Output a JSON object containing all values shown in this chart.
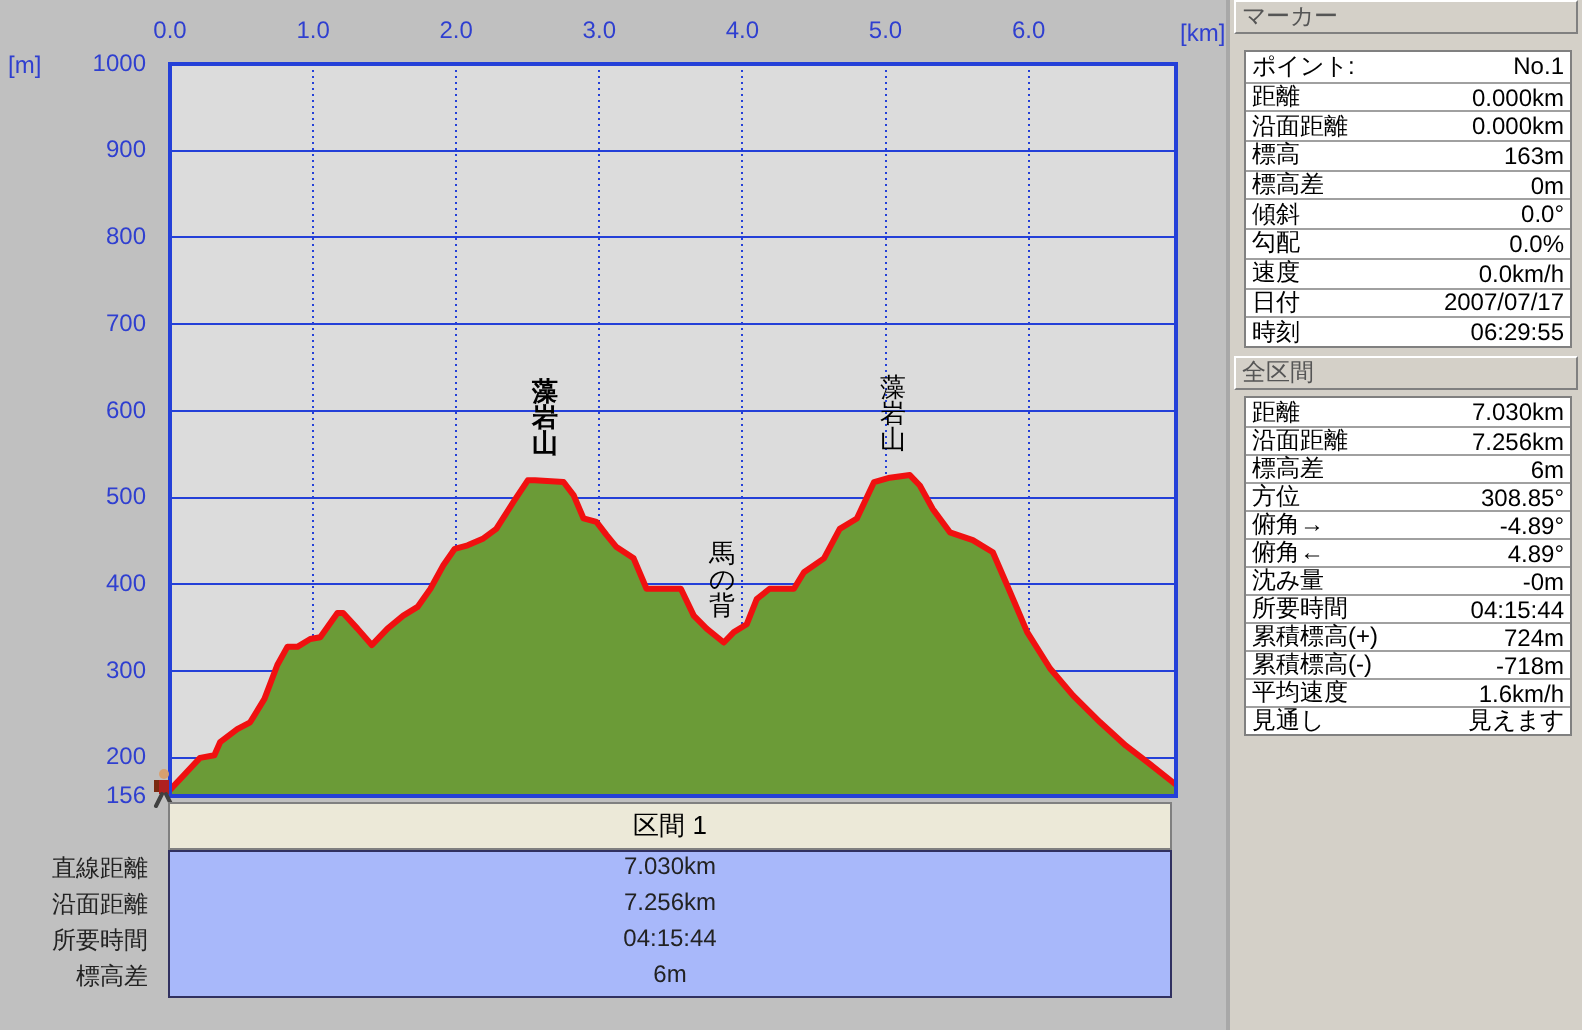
{
  "chart_data": [
    {
      "type": "area",
      "xlabel": "[km]",
      "ylabel": "[m]",
      "x": [
        0,
        0.21,
        0.31,
        0.35,
        0.47,
        0.56,
        0.66,
        0.75,
        0.82,
        0.89,
        0.98,
        1.05,
        1.17,
        1.21,
        1.31,
        1.41,
        1.52,
        1.63,
        1.73,
        1.82,
        1.91,
        1.99,
        2.08,
        2.19,
        2.28,
        2.4,
        2.5,
        2.55,
        2.75,
        2.82,
        2.89,
        2.98,
        3.05,
        3.12,
        3.24,
        3.33,
        3.43,
        3.57,
        3.66,
        3.75,
        3.87,
        3.94,
        4.03,
        4.1,
        4.19,
        4.36,
        4.43,
        4.57,
        4.68,
        4.8,
        4.92,
        5.03,
        5.17,
        5.24,
        5.33,
        5.45,
        5.61,
        5.75,
        5.85,
        5.99,
        6.15,
        6.31,
        6.5,
        6.68,
        6.87,
        7.03
      ],
      "series": [
        {
          "type": "area",
          "color": "#6b9b37",
          "values": [
            163,
            200,
            203,
            218,
            233,
            241,
            268,
            307,
            328,
            328,
            337,
            339,
            367,
            367,
            349,
            330,
            349,
            364,
            374,
            395,
            422,
            441,
            445,
            453,
            464,
            495,
            520,
            520,
            518,
            503,
            476,
            472,
            457,
            443,
            430,
            395,
            395,
            395,
            364,
            349,
            333,
            345,
            354,
            383,
            395,
            395,
            414,
            430,
            464,
            476,
            518,
            523,
            526,
            514,
            487,
            460,
            451,
            437,
            399,
            345,
            303,
            272,
            241,
            214,
            190,
            169
          ]
        },
        {
          "type": "line",
          "color": "#f01010",
          "values": [
            163,
            200,
            203,
            218,
            233,
            241,
            268,
            307,
            328,
            328,
            337,
            339,
            367,
            367,
            349,
            330,
            349,
            364,
            374,
            395,
            422,
            441,
            445,
            453,
            464,
            495,
            520,
            520,
            518,
            503,
            476,
            472,
            457,
            443,
            430,
            395,
            395,
            395,
            364,
            349,
            333,
            345,
            354,
            383,
            395,
            395,
            414,
            430,
            464,
            476,
            518,
            523,
            526,
            514,
            487,
            460,
            451,
            437,
            399,
            345,
            303,
            272,
            241,
            214,
            190,
            169
          ]
        }
      ],
      "xlim": [
        0,
        7.03
      ],
      "ylim": [
        156,
        1000
      ],
      "xticks": [
        {
          "value": 0,
          "label": "0.0"
        },
        {
          "value": 1,
          "label": "1.0"
        },
        {
          "value": 2,
          "label": "2.0"
        },
        {
          "value": 3,
          "label": "3.0"
        },
        {
          "value": 4,
          "label": "4.0"
        },
        {
          "value": 5,
          "label": "5.0"
        },
        {
          "value": 6,
          "label": "6.0"
        }
      ],
      "yticks": [
        156,
        200,
        300,
        400,
        500,
        600,
        700,
        800,
        900,
        1000
      ],
      "grid": true,
      "legend": false,
      "marker": "none",
      "annotations": [
        {
          "text": "藻岩山",
          "x": 2.62,
          "y": 520
        },
        {
          "text": "馬の背",
          "x": 3.86,
          "y": 333
        },
        {
          "text": "藻岩山",
          "x": 5.05,
          "y": 525
        }
      ]
    },
    {
      "type": "other",
      "title": "マーカー",
      "annotations": [
        "ポイント:",
        "No.1",
        "距離",
        "0.000km",
        "沿面距離",
        "0.000km",
        "標高",
        "163m",
        "標高差",
        "0m",
        "傾斜",
        "0.0°",
        "勾配",
        "0.0%",
        "速度",
        "0.0km/h",
        "日付",
        "2007/07/17",
        "時刻",
        "06:29:55"
      ]
    },
    {
      "type": "other",
      "title": "全区間",
      "annotations": [
        "距離",
        "7.030km",
        "沿面距離",
        "7.256km",
        "標高差",
        "6m",
        "方位",
        "308.85°",
        "俯角→",
        "-4.89°",
        "俯角←",
        "4.89°",
        "沈み量",
        "-0m",
        "所要時間",
        "04:15:44",
        "累積標高(+)",
        "724m",
        "累積標高(-)",
        "-718m",
        "平均速度",
        "1.6km/h",
        "見通し",
        "見えます"
      ]
    },
    {
      "type": "other",
      "title": "区間 1",
      "annotations": [
        "直線距離",
        "7.030km",
        "沿面距離",
        "7.256km",
        "所要時間",
        "04:15:44",
        "標高差",
        "6m"
      ]
    }
  ]
}
